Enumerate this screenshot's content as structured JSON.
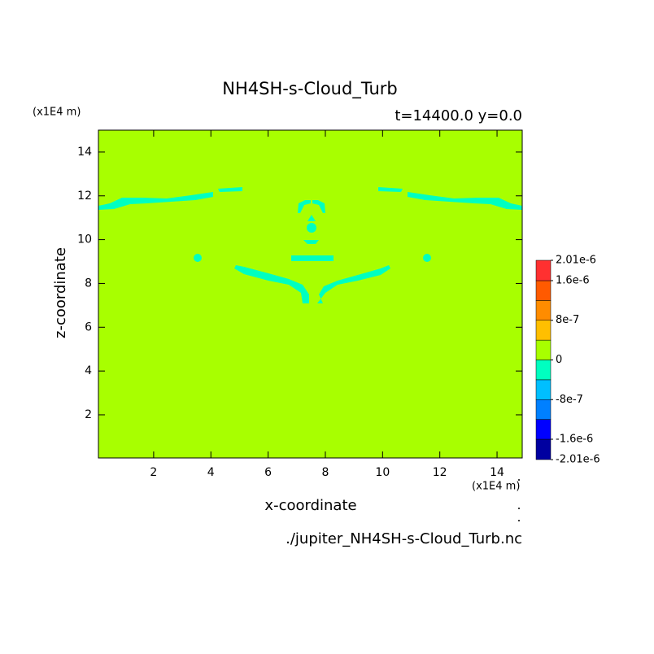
{
  "chart_data": {
    "type": "contour",
    "title": "NH4SH-s-Cloud_Turb",
    "subtitle": "t=14400.0 y=0.0",
    "x_label": "x-coordinate",
    "y_label": "z-coordinate",
    "x_unit": "(x1E4 m)",
    "y_unit": "(x1E4 m)",
    "source": "./jupiter_NH4SH-s-Cloud_Turb.nc",
    "xlim": [
      0.07,
      14.88
    ],
    "ylim": [
      0.03,
      15
    ],
    "xticks": [
      2,
      4,
      6,
      8,
      10,
      12,
      14
    ],
    "yticks": [
      2,
      4,
      6,
      8,
      10,
      12,
      14
    ],
    "background_color": "#a8ff00",
    "region_color": "#00ffc0",
    "colorbar": {
      "levels": [
        -2.01e-06,
        -1.6e-06,
        -1.2e-06,
        -8e-07,
        -4e-07,
        0,
        4e-07,
        8e-07,
        1.2e-06,
        1.6e-06,
        2.01e-06
      ],
      "colors": [
        "#0000a0",
        "#0000ff",
        "#0080ff",
        "#00bfff",
        "#00ffc0",
        "#a8ff00",
        "#ffbf00",
        "#ff8c00",
        "#ff5a00",
        "#ff3030"
      ],
      "ticks": [
        {
          "value": 2.01e-06,
          "label": "2.01e-6"
        },
        {
          "value": 1.6e-06,
          "label": "1.6e-6"
        },
        {
          "value": 8e-07,
          "label": "8e-7"
        },
        0,
        {
          "value": -8e-07,
          "label": "-8e-7"
        },
        {
          "value": -1.6e-06,
          "label": "-1.6e-6"
        },
        {
          "value": -2.01e-06,
          "label": "-2.01e-6"
        }
      ]
    }
  }
}
